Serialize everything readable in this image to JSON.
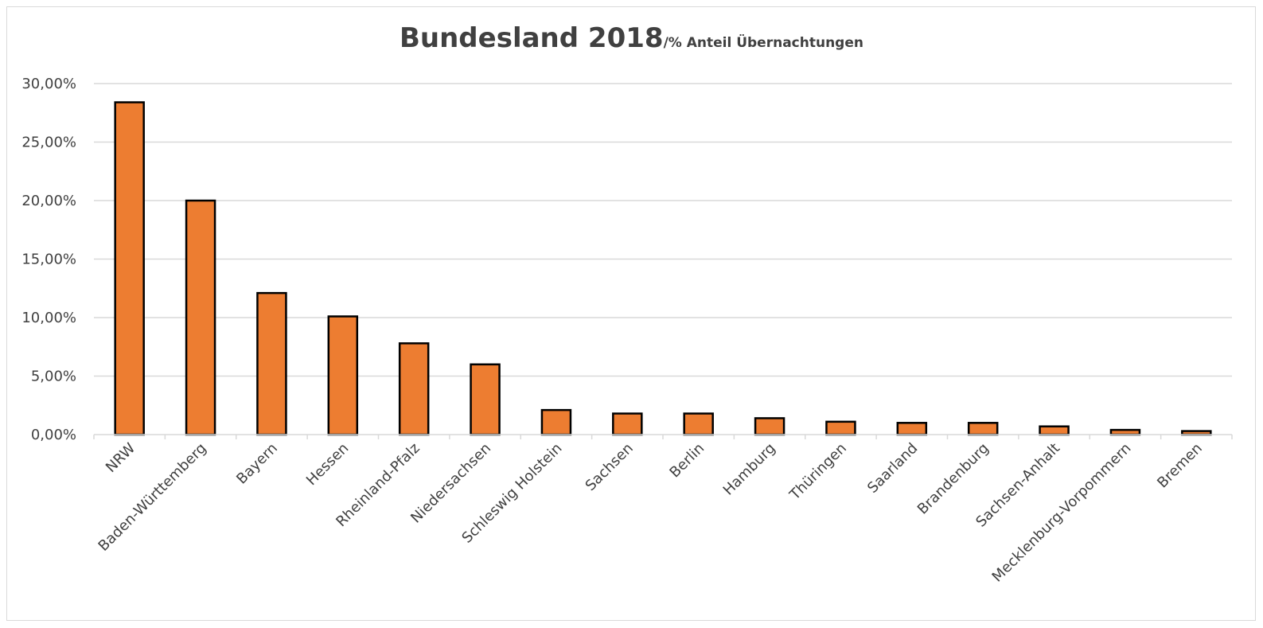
{
  "chart_data": {
    "type": "bar",
    "title": "Bundesland 2018",
    "subtitle": "/% Anteil Übernachtungen",
    "xlabel": "",
    "ylabel": "",
    "categories": [
      "NRW",
      "Baden-Württemberg",
      "Bayern",
      "Hessen",
      "Rheinland-Pfalz",
      "Niedersachsen",
      "Schleswig Holstein",
      "Sachsen",
      "Berlin",
      "Hamburg",
      "Thüringen",
      "Saarland",
      "Brandenburg",
      "Sachsen-Anhalt",
      "Mecklenburg-Vorpommern",
      "Bremen"
    ],
    "values": [
      28.4,
      20.0,
      12.1,
      10.1,
      7.8,
      6.0,
      2.1,
      1.8,
      1.8,
      1.4,
      1.1,
      1.0,
      1.0,
      0.7,
      0.4,
      0.3
    ],
    "ylim": [
      0,
      30
    ],
    "yticks": [
      0,
      5,
      10,
      15,
      20,
      25,
      30
    ],
    "ytick_labels": [
      "0,00%",
      "5,00%",
      "10,00%",
      "15,00%",
      "20,00%",
      "25,00%",
      "30,00%"
    ],
    "grid": true,
    "legend": "none",
    "colors": {
      "bar": "#ED7D31",
      "bar_edge": "#000000",
      "grid": "#d9d9d9",
      "text": "#404040"
    }
  }
}
